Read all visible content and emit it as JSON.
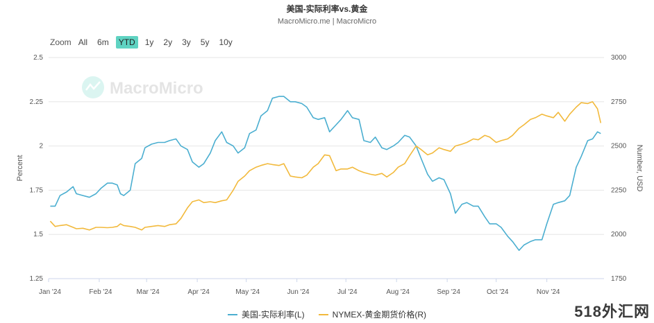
{
  "header": {
    "title": "美国-实际利率vs.黄金",
    "subtitle": "MacroMicro.me | MacroMicro"
  },
  "range_selector": {
    "zoom_label": "Zoom",
    "buttons": [
      "All",
      "6m",
      "YTD",
      "1y",
      "2y",
      "3y",
      "5y",
      "10y"
    ],
    "active": "YTD"
  },
  "watermark": "MacroMicro",
  "corner_watermark": "518外汇网",
  "colors": {
    "left_series": "#4aaed0",
    "right_series": "#f2b93b",
    "active_button": "#5fd3c2"
  },
  "chart_data": {
    "type": "line",
    "title": "美国-实际利率vs.黄金",
    "x_ticks": [
      "Jan '24",
      "Feb '24",
      "Mar '24",
      "Apr '24",
      "May '24",
      "Jun '24",
      "Jul '24",
      "Aug '24",
      "Sep '24",
      "Oct '24",
      "Nov '24"
    ],
    "y_left": {
      "label": "Percent",
      "range": [
        1.25,
        2.5
      ],
      "ticks": [
        "1.25",
        "1.5",
        "1.75",
        "2",
        "2.25",
        "2.5"
      ]
    },
    "y_right": {
      "label": "Number, USD",
      "range": [
        1750,
        3000
      ],
      "ticks": [
        "1750",
        "2000",
        "2250",
        "2500",
        "2750",
        "3000"
      ]
    },
    "grid": true,
    "legend_position": "bottom-center",
    "series": [
      {
        "name": "美国-实际利率(L)",
        "axis": "left",
        "points": [
          [
            "2024-01-02",
            1.66
          ],
          [
            "2024-01-05",
            1.66
          ],
          [
            "2024-01-08",
            1.72
          ],
          [
            "2024-01-12",
            1.74
          ],
          [
            "2024-01-16",
            1.77
          ],
          [
            "2024-01-18",
            1.73
          ],
          [
            "2024-01-22",
            1.72
          ],
          [
            "2024-01-26",
            1.71
          ],
          [
            "2024-01-30",
            1.73
          ],
          [
            "2024-02-02",
            1.76
          ],
          [
            "2024-02-06",
            1.79
          ],
          [
            "2024-02-09",
            1.79
          ],
          [
            "2024-02-12",
            1.78
          ],
          [
            "2024-02-14",
            1.73
          ],
          [
            "2024-02-16",
            1.72
          ],
          [
            "2024-02-20",
            1.75
          ],
          [
            "2024-02-23",
            1.9
          ],
          [
            "2024-02-27",
            1.93
          ],
          [
            "2024-02-29",
            1.99
          ],
          [
            "2024-03-04",
            2.01
          ],
          [
            "2024-03-08",
            2.02
          ],
          [
            "2024-03-12",
            2.02
          ],
          [
            "2024-03-15",
            2.03
          ],
          [
            "2024-03-19",
            2.04
          ],
          [
            "2024-03-22",
            2.0
          ],
          [
            "2024-03-26",
            1.98
          ],
          [
            "2024-03-29",
            1.91
          ],
          [
            "2024-04-02",
            1.88
          ],
          [
            "2024-04-05",
            1.9
          ],
          [
            "2024-04-09",
            1.96
          ],
          [
            "2024-04-12",
            2.03
          ],
          [
            "2024-04-16",
            2.08
          ],
          [
            "2024-04-19",
            2.02
          ],
          [
            "2024-04-23",
            2.0
          ],
          [
            "2024-04-26",
            1.96
          ],
          [
            "2024-04-30",
            1.99
          ],
          [
            "2024-05-03",
            2.07
          ],
          [
            "2024-05-07",
            2.09
          ],
          [
            "2024-05-10",
            2.17
          ],
          [
            "2024-05-14",
            2.2
          ],
          [
            "2024-05-17",
            2.27
          ],
          [
            "2024-05-21",
            2.28
          ],
          [
            "2024-05-24",
            2.28
          ],
          [
            "2024-05-28",
            2.25
          ],
          [
            "2024-05-31",
            2.25
          ],
          [
            "2024-06-04",
            2.24
          ],
          [
            "2024-06-07",
            2.22
          ],
          [
            "2024-06-11",
            2.16
          ],
          [
            "2024-06-14",
            2.15
          ],
          [
            "2024-06-18",
            2.16
          ],
          [
            "2024-06-21",
            2.08
          ],
          [
            "2024-06-25",
            2.12
          ],
          [
            "2024-06-28",
            2.15
          ],
          [
            "2024-07-02",
            2.2
          ],
          [
            "2024-07-05",
            2.16
          ],
          [
            "2024-07-09",
            2.15
          ],
          [
            "2024-07-12",
            2.03
          ],
          [
            "2024-07-16",
            2.02
          ],
          [
            "2024-07-19",
            2.05
          ],
          [
            "2024-07-23",
            1.99
          ],
          [
            "2024-07-26",
            1.98
          ],
          [
            "2024-07-30",
            2.0
          ],
          [
            "2024-08-02",
            2.02
          ],
          [
            "2024-08-06",
            2.06
          ],
          [
            "2024-08-09",
            2.05
          ],
          [
            "2024-08-13",
            2.0
          ],
          [
            "2024-08-16",
            1.93
          ],
          [
            "2024-08-20",
            1.84
          ],
          [
            "2024-08-23",
            1.8
          ],
          [
            "2024-08-27",
            1.82
          ],
          [
            "2024-08-30",
            1.81
          ],
          [
            "2024-09-03",
            1.73
          ],
          [
            "2024-09-06",
            1.62
          ],
          [
            "2024-09-10",
            1.67
          ],
          [
            "2024-09-13",
            1.68
          ],
          [
            "2024-09-17",
            1.66
          ],
          [
            "2024-09-20",
            1.66
          ],
          [
            "2024-09-24",
            1.6
          ],
          [
            "2024-09-27",
            1.56
          ],
          [
            "2024-10-01",
            1.56
          ],
          [
            "2024-10-04",
            1.54
          ],
          [
            "2024-10-08",
            1.49
          ],
          [
            "2024-10-11",
            1.46
          ],
          [
            "2024-10-15",
            1.41
          ],
          [
            "2024-10-18",
            1.44
          ],
          [
            "2024-10-22",
            1.46
          ],
          [
            "2024-10-25",
            1.47
          ],
          [
            "2024-10-29",
            1.47
          ],
          [
            "2024-11-01",
            1.56
          ],
          [
            "2024-11-05",
            1.67
          ],
          [
            "2024-11-08",
            1.68
          ],
          [
            "2024-11-12",
            1.69
          ],
          [
            "2024-11-15",
            1.72
          ],
          [
            "2024-11-19",
            1.88
          ],
          [
            "2024-11-22",
            1.94
          ],
          [
            "2024-11-26",
            2.03
          ],
          [
            "2024-11-29",
            2.04
          ],
          [
            "2024-12-02",
            2.08
          ],
          [
            "2024-12-04",
            2.07
          ]
        ]
      },
      {
        "name": "NYMEX-黄金期货价格(R)",
        "axis": "right",
        "points": [
          [
            "2024-01-02",
            2075
          ],
          [
            "2024-01-05",
            2045
          ],
          [
            "2024-01-08",
            2050
          ],
          [
            "2024-01-12",
            2055
          ],
          [
            "2024-01-16",
            2040
          ],
          [
            "2024-01-18",
            2032
          ],
          [
            "2024-01-22",
            2035
          ],
          [
            "2024-01-26",
            2025
          ],
          [
            "2024-01-30",
            2040
          ],
          [
            "2024-02-02",
            2040
          ],
          [
            "2024-02-06",
            2038
          ],
          [
            "2024-02-09",
            2040
          ],
          [
            "2024-02-12",
            2045
          ],
          [
            "2024-02-14",
            2060
          ],
          [
            "2024-02-16",
            2050
          ],
          [
            "2024-02-20",
            2045
          ],
          [
            "2024-02-23",
            2040
          ],
          [
            "2024-02-27",
            2025
          ],
          [
            "2024-02-29",
            2040
          ],
          [
            "2024-03-04",
            2045
          ],
          [
            "2024-03-08",
            2050
          ],
          [
            "2024-03-12",
            2045
          ],
          [
            "2024-03-15",
            2055
          ],
          [
            "2024-03-19",
            2060
          ],
          [
            "2024-03-22",
            2090
          ],
          [
            "2024-03-26",
            2150
          ],
          [
            "2024-03-29",
            2185
          ],
          [
            "2024-04-02",
            2195
          ],
          [
            "2024-04-05",
            2180
          ],
          [
            "2024-04-09",
            2185
          ],
          [
            "2024-04-12",
            2180
          ],
          [
            "2024-04-16",
            2190
          ],
          [
            "2024-04-19",
            2195
          ],
          [
            "2024-04-23",
            2250
          ],
          [
            "2024-04-26",
            2300
          ],
          [
            "2024-04-30",
            2330
          ],
          [
            "2024-05-03",
            2360
          ],
          [
            "2024-05-07",
            2380
          ],
          [
            "2024-05-10",
            2390
          ],
          [
            "2024-05-14",
            2400
          ],
          [
            "2024-05-17",
            2395
          ],
          [
            "2024-05-21",
            2390
          ],
          [
            "2024-05-24",
            2400
          ],
          [
            "2024-05-28",
            2330
          ],
          [
            "2024-05-31",
            2325
          ],
          [
            "2024-06-04",
            2320
          ],
          [
            "2024-06-07",
            2335
          ],
          [
            "2024-06-11",
            2380
          ],
          [
            "2024-06-14",
            2400
          ],
          [
            "2024-06-18",
            2450
          ],
          [
            "2024-06-21",
            2445
          ],
          [
            "2024-06-25",
            2360
          ],
          [
            "2024-06-28",
            2370
          ],
          [
            "2024-07-02",
            2370
          ],
          [
            "2024-07-05",
            2380
          ],
          [
            "2024-07-09",
            2360
          ],
          [
            "2024-07-12",
            2350
          ],
          [
            "2024-07-16",
            2340
          ],
          [
            "2024-07-19",
            2335
          ],
          [
            "2024-07-23",
            2345
          ],
          [
            "2024-07-26",
            2325
          ],
          [
            "2024-07-30",
            2350
          ],
          [
            "2024-08-02",
            2380
          ],
          [
            "2024-08-06",
            2400
          ],
          [
            "2024-08-09",
            2445
          ],
          [
            "2024-08-13",
            2500
          ],
          [
            "2024-08-16",
            2480
          ],
          [
            "2024-08-20",
            2450
          ],
          [
            "2024-08-23",
            2460
          ],
          [
            "2024-08-27",
            2490
          ],
          [
            "2024-08-30",
            2480
          ],
          [
            "2024-09-03",
            2470
          ],
          [
            "2024-09-06",
            2500
          ],
          [
            "2024-09-10",
            2510
          ],
          [
            "2024-09-13",
            2520
          ],
          [
            "2024-09-17",
            2540
          ],
          [
            "2024-09-20",
            2535
          ],
          [
            "2024-09-24",
            2560
          ],
          [
            "2024-09-27",
            2550
          ],
          [
            "2024-10-01",
            2520
          ],
          [
            "2024-10-04",
            2530
          ],
          [
            "2024-10-08",
            2540
          ],
          [
            "2024-10-11",
            2560
          ],
          [
            "2024-10-15",
            2600
          ],
          [
            "2024-10-18",
            2620
          ],
          [
            "2024-10-22",
            2650
          ],
          [
            "2024-10-25",
            2660
          ],
          [
            "2024-10-29",
            2680
          ],
          [
            "2024-11-01",
            2670
          ],
          [
            "2024-11-05",
            2660
          ],
          [
            "2024-11-08",
            2690
          ],
          [
            "2024-11-12",
            2640
          ],
          [
            "2024-11-15",
            2680
          ],
          [
            "2024-11-19",
            2720
          ],
          [
            "2024-11-22",
            2745
          ],
          [
            "2024-11-26",
            2740
          ],
          [
            "2024-11-29",
            2750
          ],
          [
            "2024-12-02",
            2710
          ],
          [
            "2024-12-04",
            2630
          ]
        ]
      }
    ]
  }
}
